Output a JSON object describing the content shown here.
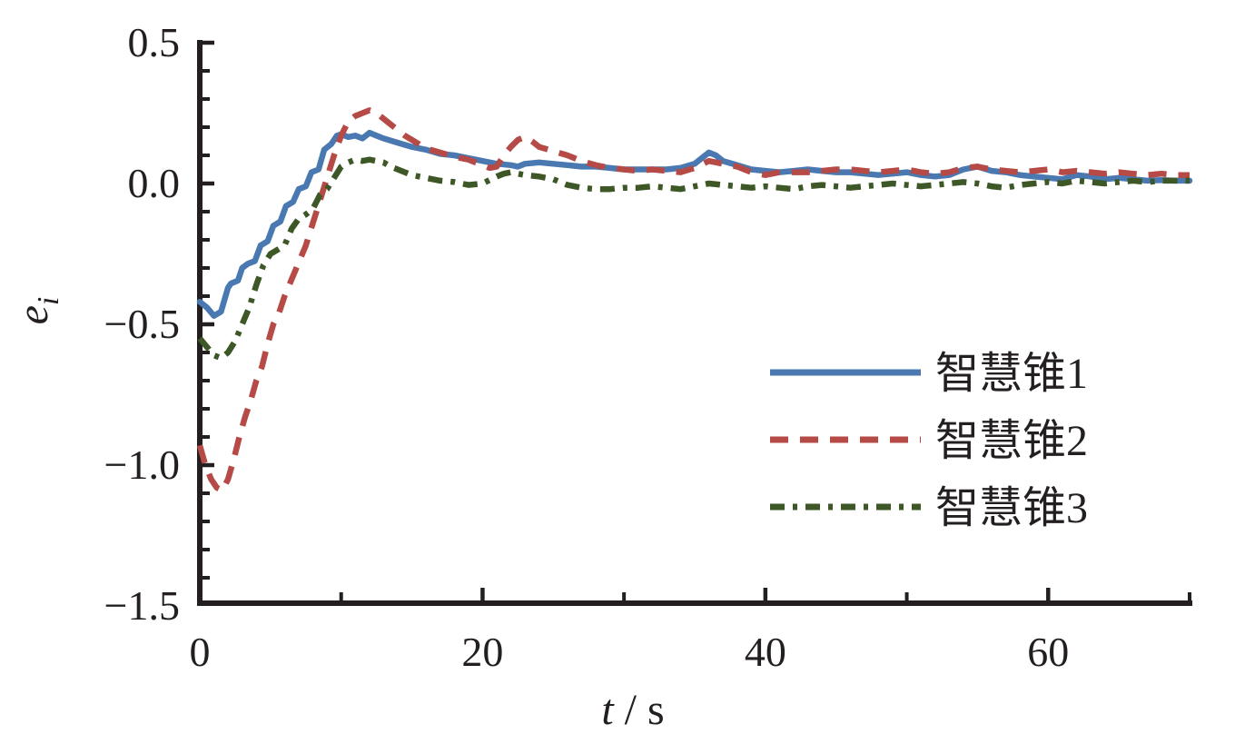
{
  "figure": {
    "background": "#ffffff",
    "axis_color": "#231f20"
  },
  "chart_data": {
    "type": "line",
    "title": "",
    "xlabel": {
      "variable": "t",
      "separator": " / ",
      "unit": "s",
      "display": "t / s"
    },
    "ylabel": {
      "variable": "e",
      "subscript": "i",
      "display": "e_i"
    },
    "xlim": [
      0,
      70
    ],
    "ylim": [
      -1.5,
      0.5
    ],
    "x_major_ticks": [
      0,
      20,
      40,
      60
    ],
    "x_tick_labels": [
      "0",
      "20",
      "40",
      "60"
    ],
    "x_minor_ticks": [
      10,
      30,
      50,
      70
    ],
    "y_major_ticks": [
      0.5,
      0.0,
      -0.5,
      -1.0,
      -1.5
    ],
    "y_tick_labels": [
      "0.5",
      "0.0",
      "−0.5",
      "−1.0",
      "−1.5"
    ],
    "y_minor_step": 0.1,
    "grid": false,
    "legend": {
      "position": "center-right",
      "frame": false,
      "items": [
        {
          "label": "智慧锥1",
          "line_style": "solid",
          "color": "#4979b0"
        },
        {
          "label": "智慧锥2",
          "line_style": "dashed",
          "color": "#b54a47"
        },
        {
          "label": "智慧锥3",
          "line_style": "dashdot",
          "color": "#3d5826"
        }
      ]
    },
    "series": [
      {
        "name": "智慧锥1",
        "color": "#4979b0",
        "line_style": "solid",
        "x": [
          0,
          0.5,
          1,
          1.5,
          2,
          2.2,
          2.7,
          3,
          3.4,
          3.9,
          4.3,
          4.8,
          5.2,
          5.7,
          6.1,
          6.6,
          7,
          7.5,
          7.9,
          8.4,
          8.8,
          9.3,
          9.7,
          10,
          10.5,
          11,
          11.5,
          12,
          12.5,
          13,
          14,
          15,
          16,
          17,
          18,
          19,
          20,
          21,
          22,
          22.5,
          23,
          24,
          25,
          26,
          27,
          28,
          29,
          30,
          31,
          32,
          33,
          34,
          35,
          35.5,
          36,
          36.5,
          37,
          38,
          39,
          40,
          41,
          42,
          43,
          44,
          45,
          46,
          47,
          48,
          49,
          50,
          51,
          52,
          53,
          54,
          55,
          56,
          57,
          58,
          59,
          60,
          61,
          62,
          63,
          64,
          65,
          66,
          67,
          68,
          69,
          70
        ],
        "y": [
          -0.42,
          -0.44,
          -0.47,
          -0.455,
          -0.37,
          -0.355,
          -0.345,
          -0.3,
          -0.285,
          -0.275,
          -0.22,
          -0.205,
          -0.15,
          -0.135,
          -0.08,
          -0.065,
          -0.02,
          -0.01,
          0.04,
          0.05,
          0.12,
          0.14,
          0.17,
          0.175,
          0.165,
          0.17,
          0.16,
          0.18,
          0.17,
          0.16,
          0.145,
          0.13,
          0.12,
          0.105,
          0.1,
          0.09,
          0.08,
          0.07,
          0.065,
          0.06,
          0.07,
          0.075,
          0.07,
          0.065,
          0.06,
          0.06,
          0.055,
          0.05,
          0.05,
          0.05,
          0.05,
          0.055,
          0.07,
          0.09,
          0.11,
          0.1,
          0.08,
          0.065,
          0.05,
          0.045,
          0.04,
          0.045,
          0.05,
          0.045,
          0.04,
          0.04,
          0.035,
          0.03,
          0.035,
          0.04,
          0.03,
          0.025,
          0.03,
          0.05,
          0.06,
          0.045,
          0.04,
          0.03,
          0.025,
          0.02,
          0.015,
          0.03,
          0.025,
          0.015,
          0.02,
          0.015,
          0.01,
          0.012,
          0.01,
          0.01
        ]
      },
      {
        "name": "智慧锥2",
        "color": "#b54a47",
        "line_style": "dashed",
        "x": [
          0,
          0.4,
          0.8,
          1.2,
          1.6,
          2,
          2.4,
          2.8,
          3.2,
          3.6,
          4,
          4.4,
          4.8,
          5.2,
          5.6,
          6,
          6.5,
          7,
          7.5,
          8,
          8.5,
          9,
          9.5,
          10,
          10.5,
          11,
          11.5,
          12,
          12.5,
          13,
          13.5,
          14,
          14.5,
          15,
          15.5,
          16,
          17,
          18,
          19,
          19.5,
          20,
          20.5,
          21,
          21.5,
          22,
          22.5,
          23,
          23.5,
          24,
          25,
          26,
          27,
          28,
          29,
          30,
          31,
          32,
          33,
          34,
          35,
          36,
          37,
          38,
          39,
          40,
          41,
          42,
          43,
          44,
          45,
          46,
          47,
          48,
          49,
          50,
          51,
          52,
          53,
          54,
          55,
          56,
          57,
          58,
          59,
          60,
          61,
          62,
          63,
          64,
          65,
          66,
          67,
          68,
          69,
          70
        ],
        "y": [
          -0.93,
          -1.0,
          -1.05,
          -1.08,
          -1.09,
          -1.05,
          -0.98,
          -0.9,
          -0.83,
          -0.77,
          -0.7,
          -0.65,
          -0.57,
          -0.5,
          -0.46,
          -0.4,
          -0.34,
          -0.28,
          -0.22,
          -0.14,
          -0.06,
          0.02,
          0.1,
          0.17,
          0.22,
          0.24,
          0.25,
          0.26,
          0.25,
          0.23,
          0.21,
          0.19,
          0.17,
          0.155,
          0.14,
          0.125,
          0.11,
          0.095,
          0.085,
          0.075,
          0.065,
          0.055,
          0.06,
          0.1,
          0.13,
          0.155,
          0.165,
          0.15,
          0.13,
          0.115,
          0.1,
          0.08,
          0.065,
          0.055,
          0.05,
          0.045,
          0.05,
          0.045,
          0.04,
          0.055,
          0.08,
          0.07,
          0.06,
          0.04,
          0.03,
          0.04,
          0.04,
          0.04,
          0.045,
          0.05,
          0.05,
          0.045,
          0.04,
          0.045,
          0.05,
          0.04,
          0.035,
          0.04,
          0.055,
          0.06,
          0.05,
          0.045,
          0.04,
          0.045,
          0.05,
          0.04,
          0.045,
          0.04,
          0.035,
          0.04,
          0.035,
          0.03,
          0.035,
          0.03,
          0.03
        ]
      },
      {
        "name": "智慧锥3",
        "color": "#3d5826",
        "line_style": "dashdot",
        "x": [
          0,
          0.5,
          1,
          1.5,
          2,
          2.5,
          3,
          3.5,
          4,
          4.5,
          5,
          5.5,
          6,
          6.5,
          7,
          7.5,
          8,
          8.5,
          9,
          9.5,
          10,
          10.5,
          11,
          11.5,
          12,
          12.5,
          13,
          13.5,
          14,
          14.5,
          15,
          16,
          17,
          18,
          19,
          20,
          21,
          21.5,
          22,
          22.5,
          23,
          24,
          25,
          26,
          27,
          28,
          29,
          30,
          31,
          32,
          33,
          34,
          35,
          36,
          37,
          38,
          39,
          40,
          41,
          42,
          43,
          44,
          45,
          46,
          47,
          48,
          49,
          50,
          51,
          52,
          53,
          54,
          55,
          56,
          57,
          58,
          59,
          60,
          61,
          62,
          63,
          64,
          65,
          66,
          67,
          68,
          69,
          70
        ],
        "y": [
          -0.55,
          -0.58,
          -0.61,
          -0.62,
          -0.6,
          -0.56,
          -0.5,
          -0.44,
          -0.36,
          -0.29,
          -0.25,
          -0.235,
          -0.22,
          -0.16,
          -0.125,
          -0.11,
          -0.09,
          -0.04,
          -0.02,
          0.02,
          0.06,
          0.075,
          0.085,
          0.08,
          0.085,
          0.08,
          0.075,
          0.06,
          0.05,
          0.04,
          0.03,
          0.02,
          0.01,
          0.005,
          -0.005,
          0.0,
          0.025,
          0.035,
          0.04,
          0.035,
          0.03,
          0.025,
          0.015,
          -0.005,
          -0.015,
          -0.02,
          -0.02,
          -0.015,
          -0.015,
          -0.01,
          -0.015,
          -0.02,
          -0.01,
          0.0,
          -0.005,
          -0.01,
          -0.015,
          -0.01,
          -0.015,
          -0.02,
          -0.01,
          -0.005,
          -0.01,
          -0.015,
          -0.01,
          -0.005,
          0.0,
          -0.005,
          -0.01,
          -0.005,
          0.0,
          0.005,
          0.0,
          -0.01,
          -0.015,
          -0.005,
          0.0,
          0.005,
          0.0,
          0.01,
          0.005,
          0.0,
          0.005,
          0.01,
          0.005,
          0.01,
          0.01,
          0.01
        ]
      }
    ]
  }
}
